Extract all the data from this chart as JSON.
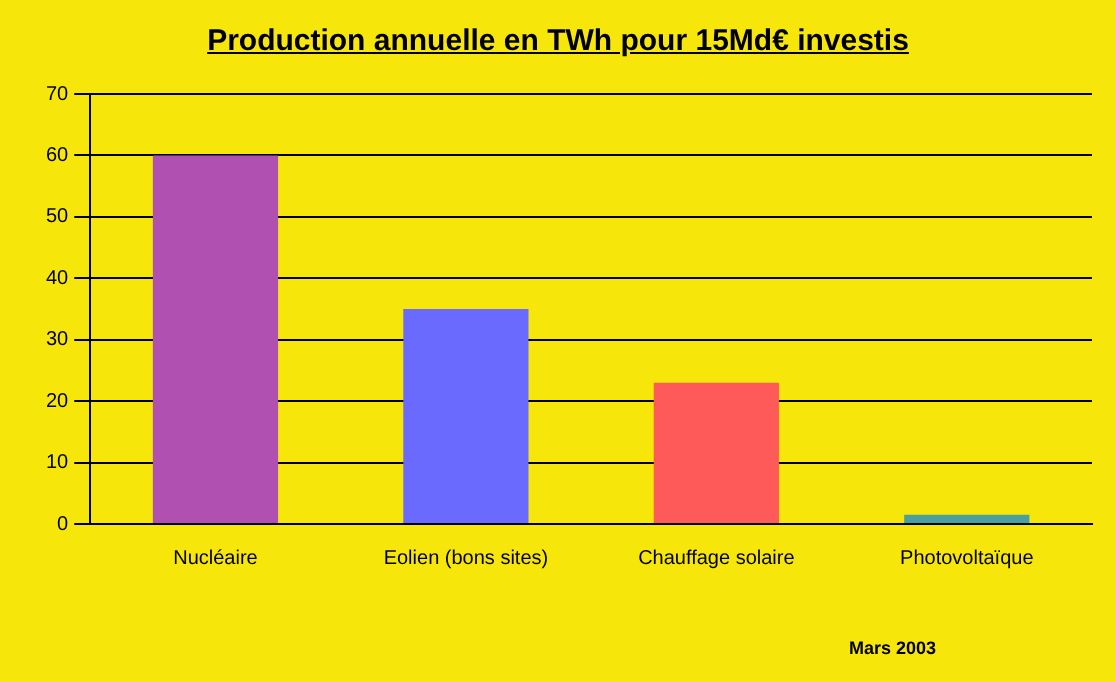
{
  "chart_data": {
    "type": "bar",
    "title": "Production annuelle en TWh pour 15Md€ investis",
    "categories": [
      "Nucléaire",
      "Eolien (bons sites)",
      "Chauffage solaire",
      "Photovoltaïque"
    ],
    "values": [
      60,
      35,
      23,
      1.5
    ],
    "colors": [
      "#b050b0",
      "#6a6aff",
      "#ff5a5a",
      "#4aa0a0"
    ],
    "ylim": [
      0,
      70
    ],
    "yticks": [
      0,
      10,
      20,
      30,
      40,
      50,
      60,
      70
    ],
    "grid": "y",
    "legend": false,
    "annotations": [
      "Mars 2003"
    ]
  }
}
